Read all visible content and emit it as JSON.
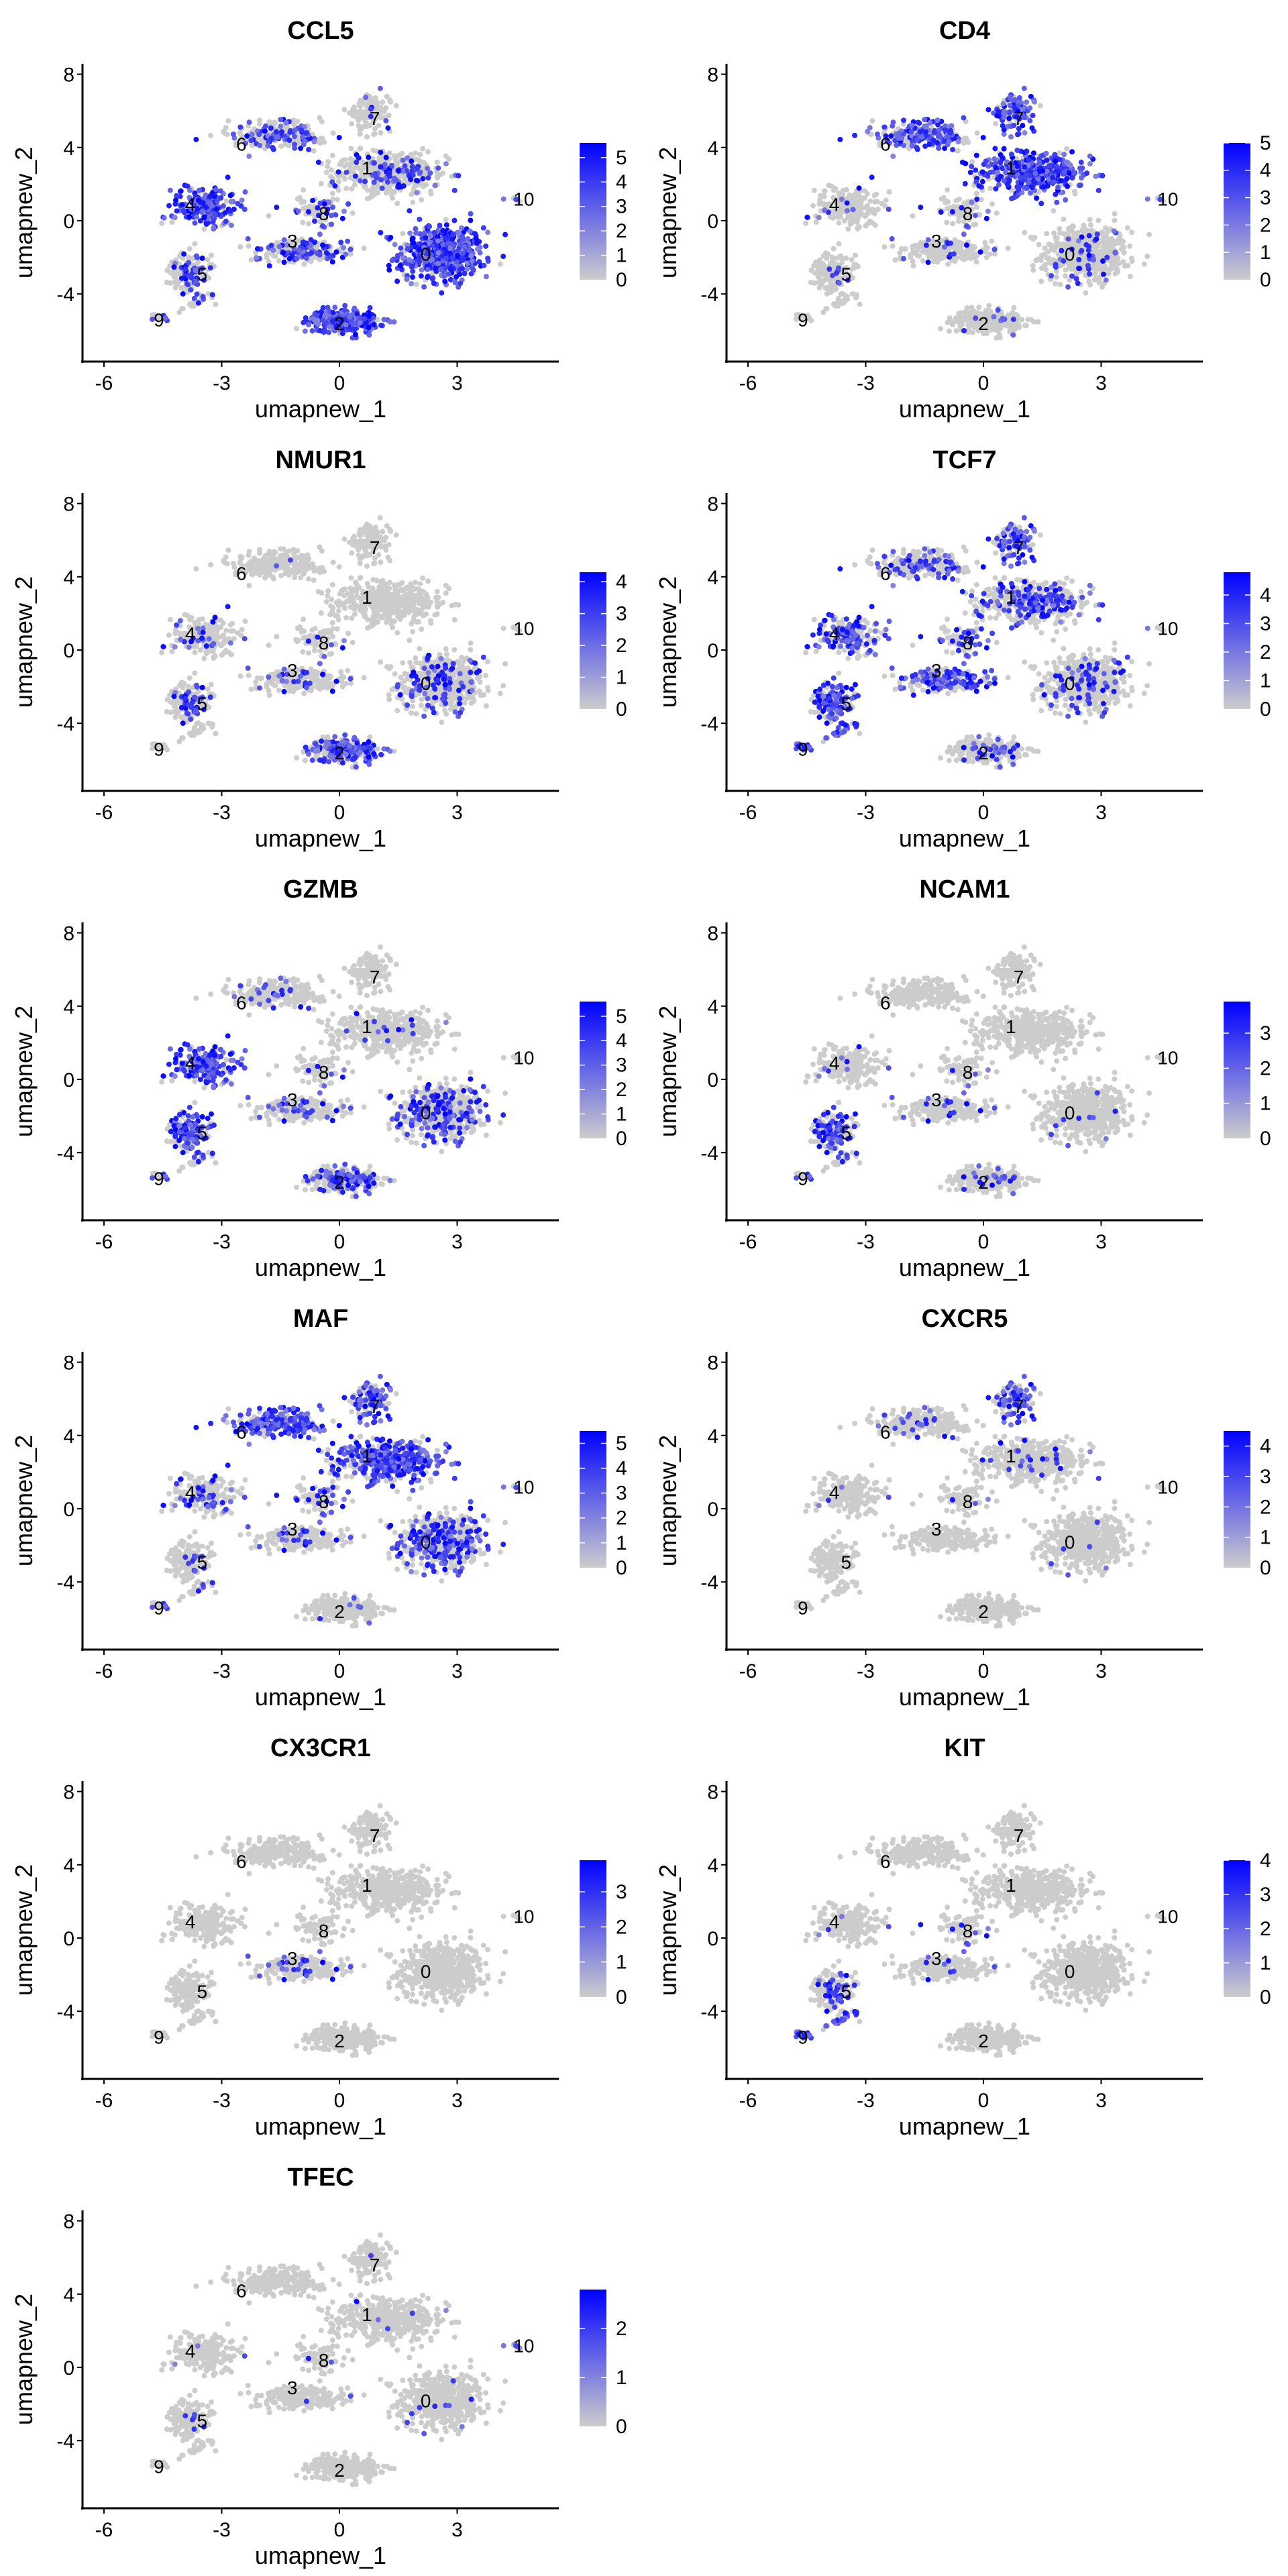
{
  "chart_data": {
    "type": "scatter",
    "subtype": "umap-feature-plot-grid",
    "xlabel": "umapnew_1",
    "ylabel": "umapnew_2",
    "xlim": [
      -6.5,
      5.5
    ],
    "ylim": [
      -7.7,
      8.8
    ],
    "xticks": [
      -6,
      -3,
      0,
      3
    ],
    "yticks": [
      -4,
      0,
      4,
      8
    ],
    "grid": false,
    "colors": {
      "low": "#cccccc",
      "high": "#0000ff",
      "text": "#000000"
    },
    "clusters": [
      {
        "label": "0",
        "x": 2.2,
        "y": -1.9
      },
      {
        "label": "1",
        "x": 0.7,
        "y": 2.8
      },
      {
        "label": "2",
        "x": 0.0,
        "y": -5.7
      },
      {
        "label": "3",
        "x": -1.2,
        "y": -1.2
      },
      {
        "label": "4",
        "x": -3.8,
        "y": 0.8
      },
      {
        "label": "5",
        "x": -3.5,
        "y": -3.0
      },
      {
        "label": "6",
        "x": -2.5,
        "y": 4.1
      },
      {
        "label": "7",
        "x": 0.9,
        "y": 5.5
      },
      {
        "label": "8",
        "x": -0.4,
        "y": 0.3
      },
      {
        "label": "9",
        "x": -4.6,
        "y": -5.5
      },
      {
        "label": "10",
        "x": 4.7,
        "y": 1.1
      }
    ],
    "panels": [
      {
        "title": "CCL5",
        "legend_max": 5.6,
        "legend_ticks": [
          0,
          1,
          2,
          3,
          4,
          5
        ],
        "high_clusters": {
          "0": 0.85,
          "2": 0.95,
          "4": 0.8,
          "3": 0.45,
          "5": 0.35,
          "8": 0.3,
          "6": 0.35,
          "1": 0.15,
          "7": 0.05,
          "9": 0.1,
          "10": 0.2
        }
      },
      {
        "title": "CD4",
        "legend_max": 5.0,
        "legend_ticks": [
          0,
          1,
          2,
          3,
          4,
          5
        ],
        "high_clusters": {
          "1": 0.75,
          "7": 0.7,
          "6": 0.6,
          "0": 0.08,
          "2": 0.03,
          "3": 0.05,
          "4": 0.05,
          "5": 0.03,
          "8": 0.1,
          "9": 0.0,
          "10": 0.2
        }
      },
      {
        "title": "NMUR1",
        "legend_max": 4.3,
        "legend_ticks": [
          0,
          1,
          2,
          3,
          4
        ],
        "high_clusters": {
          "2": 0.55,
          "0": 0.15,
          "5": 0.25,
          "4": 0.1,
          "3": 0.12,
          "1": 0.0,
          "6": 0.02,
          "7": 0.0,
          "8": 0.05,
          "9": 0.0,
          "10": 0.0
        }
      },
      {
        "title": "TCF7",
        "legend_max": 4.8,
        "legend_ticks": [
          0,
          1,
          2,
          3,
          4
        ],
        "high_clusters": {
          "5": 0.7,
          "3": 0.6,
          "7": 0.55,
          "4": 0.45,
          "9": 0.7,
          "1": 0.3,
          "6": 0.3,
          "0": 0.12,
          "2": 0.12,
          "8": 0.35,
          "10": 0.1
        }
      },
      {
        "title": "GZMB",
        "legend_max": 5.6,
        "legend_ticks": [
          0,
          1,
          2,
          3,
          4,
          5
        ],
        "high_clusters": {
          "4": 0.7,
          "5": 0.7,
          "0": 0.25,
          "2": 0.3,
          "3": 0.15,
          "6": 0.1,
          "1": 0.03,
          "7": 0.0,
          "8": 0.05,
          "9": 0.1,
          "10": 0.0
        }
      },
      {
        "title": "NCAM1",
        "legend_max": 3.9,
        "legend_ticks": [
          0,
          1,
          2,
          3
        ],
        "high_clusters": {
          "5": 0.55,
          "2": 0.08,
          "3": 0.05,
          "0": 0.02,
          "4": 0.03,
          "1": 0.0,
          "6": 0.0,
          "7": 0.0,
          "8": 0.03,
          "9": 0.1,
          "10": 0.0
        }
      },
      {
        "title": "MAF",
        "legend_max": 5.5,
        "legend_ticks": [
          0,
          1,
          2,
          3,
          4,
          5
        ],
        "high_clusters": {
          "6": 0.75,
          "1": 0.65,
          "7": 0.55,
          "0": 0.3,
          "4": 0.2,
          "3": 0.1,
          "8": 0.2,
          "5": 0.05,
          "2": 0.02,
          "9": 0.1,
          "10": 0.2
        }
      },
      {
        "title": "CXCR5",
        "legend_max": 4.5,
        "legend_ticks": [
          0,
          1,
          2,
          3,
          4
        ],
        "high_clusters": {
          "7": 0.5,
          "6": 0.1,
          "1": 0.06,
          "0": 0.01,
          "4": 0.02,
          "3": 0.0,
          "2": 0.0,
          "5": 0.0,
          "8": 0.02,
          "9": 0.0,
          "10": 0.0
        }
      },
      {
        "title": "CX3CR1",
        "legend_max": 3.9,
        "legend_ticks": [
          0,
          1,
          2,
          3
        ],
        "high_clusters": {
          "3": 0.12,
          "0": 0.0,
          "1": 0.0,
          "2": 0.0,
          "4": 0.0,
          "5": 0.0,
          "6": 0.0,
          "7": 0.0,
          "8": 0.0,
          "9": 0.0,
          "10": 0.0
        }
      },
      {
        "title": "KIT",
        "legend_max": 4.0,
        "legend_ticks": [
          0,
          1,
          2,
          3,
          4
        ],
        "high_clusters": {
          "9": 0.8,
          "5": 0.25,
          "8": 0.08,
          "4": 0.02,
          "3": 0.02,
          "0": 0.0,
          "1": 0.0,
          "2": 0.0,
          "6": 0.0,
          "7": 0.0,
          "10": 0.0
        }
      },
      {
        "title": "TFEC",
        "legend_max": 2.8,
        "legend_ticks": [
          0,
          1,
          2
        ],
        "high_clusters": {
          "0": 0.02,
          "10": 0.3,
          "1": 0.01,
          "5": 0.02,
          "4": 0.01,
          "2": 0.005,
          "3": 0.005,
          "6": 0.0,
          "7": 0.005,
          "8": 0.005,
          "9": 0.0
        }
      }
    ]
  }
}
